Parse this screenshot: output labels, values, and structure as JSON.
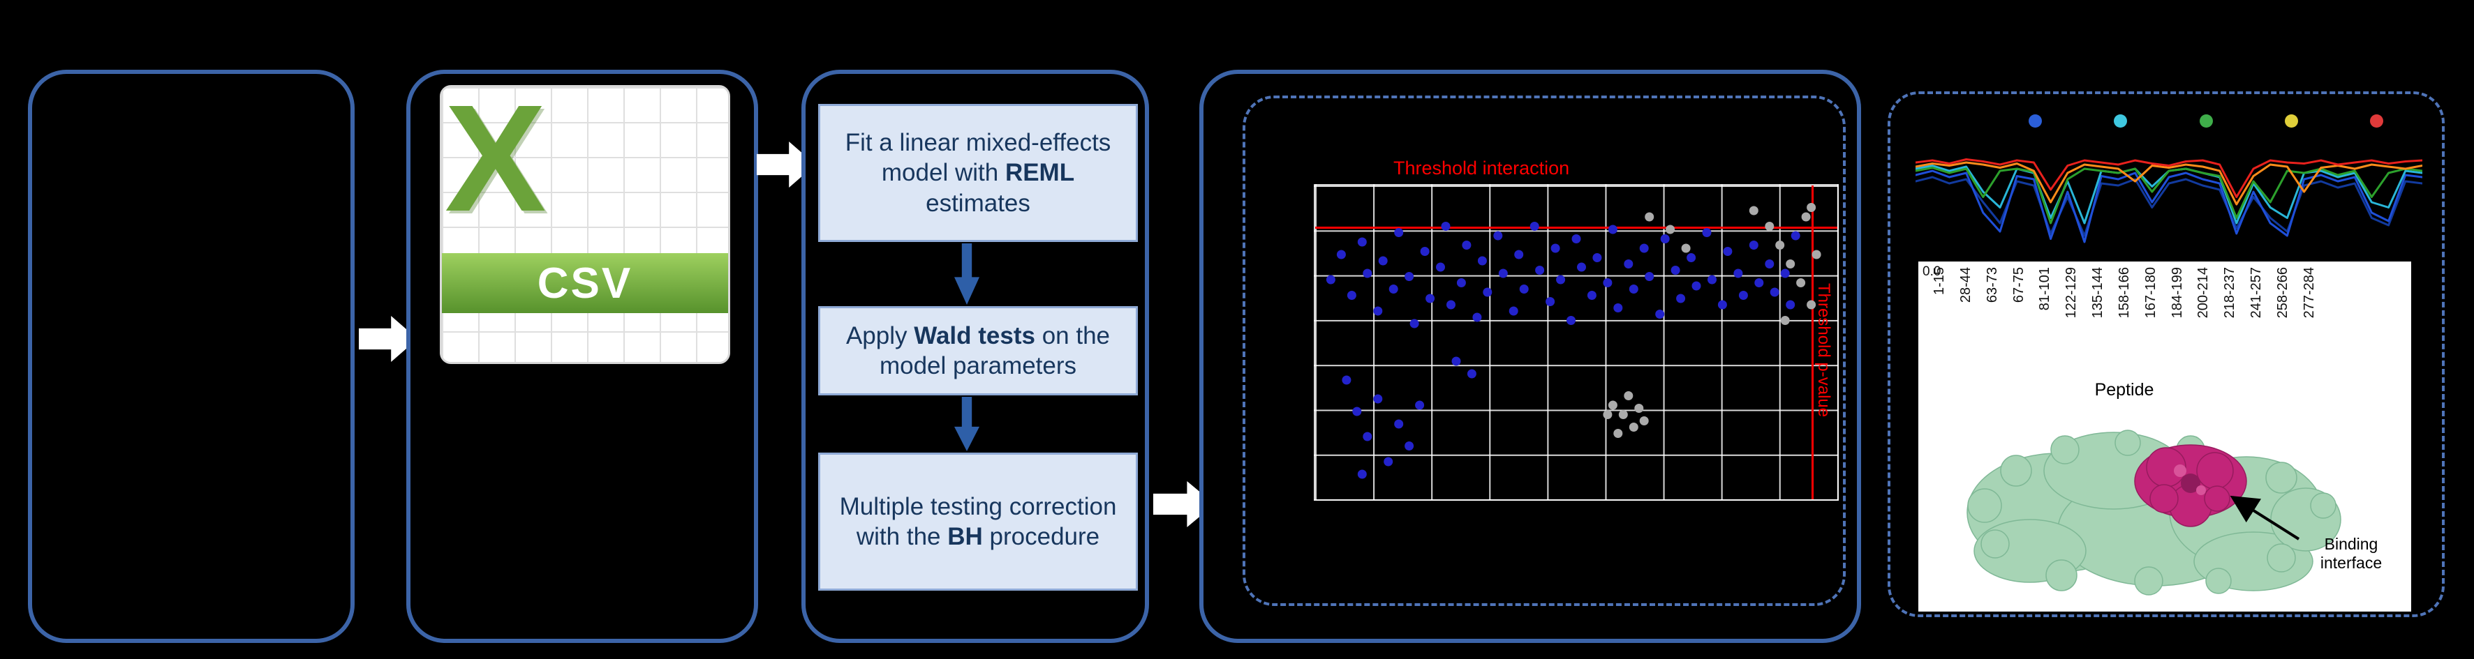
{
  "csv_icon": {
    "logo_letter": "X",
    "format_label": "CSV"
  },
  "pipeline": {
    "boxes": [
      {
        "pre": "Fit a linear mixed-effects model with ",
        "bold": "REML",
        "post": " estimates"
      },
      {
        "pre": "Apply ",
        "bold": "Wald tests",
        "post": " on the model parameters"
      },
      {
        "pre": "Multiple testing correction\nwith the ",
        "bold": "BH",
        "post": " procedure"
      }
    ]
  },
  "volcano": {
    "threshold_top_label": "Threshold interaction",
    "threshold_right_label": "Threshold p-value",
    "hline_pct": 13,
    "vline_pct": 95,
    "blue_color": "#2323cc",
    "gray_color": "#ababab",
    "points_blue": [
      [
        3,
        30
      ],
      [
        5,
        22
      ],
      [
        7,
        35
      ],
      [
        9,
        18
      ],
      [
        10,
        28
      ],
      [
        12,
        40
      ],
      [
        13,
        24
      ],
      [
        15,
        33
      ],
      [
        16,
        15
      ],
      [
        18,
        29
      ],
      [
        19,
        44
      ],
      [
        21,
        21
      ],
      [
        22,
        36
      ],
      [
        24,
        26
      ],
      [
        25,
        13
      ],
      [
        26,
        38
      ],
      [
        28,
        31
      ],
      [
        29,
        19
      ],
      [
        31,
        42
      ],
      [
        32,
        24
      ],
      [
        33,
        34
      ],
      [
        35,
        16
      ],
      [
        36,
        28
      ],
      [
        38,
        40
      ],
      [
        39,
        22
      ],
      [
        40,
        33
      ],
      [
        42,
        13
      ],
      [
        43,
        27
      ],
      [
        45,
        37
      ],
      [
        46,
        20
      ],
      [
        47,
        30
      ],
      [
        49,
        43
      ],
      [
        50,
        17
      ],
      [
        51,
        26
      ],
      [
        53,
        35
      ],
      [
        54,
        23
      ],
      [
        56,
        31
      ],
      [
        57,
        14
      ],
      [
        58,
        39
      ],
      [
        60,
        25
      ],
      [
        61,
        33
      ],
      [
        63,
        20
      ],
      [
        64,
        29
      ],
      [
        66,
        41
      ],
      [
        67,
        17
      ],
      [
        69,
        27
      ],
      [
        70,
        36
      ],
      [
        72,
        23
      ],
      [
        73,
        32
      ],
      [
        75,
        15
      ],
      [
        76,
        30
      ],
      [
        78,
        38
      ],
      [
        79,
        21
      ],
      [
        81,
        28
      ],
      [
        82,
        35
      ],
      [
        84,
        19
      ],
      [
        85,
        31
      ],
      [
        87,
        25
      ],
      [
        88,
        34
      ],
      [
        90,
        28
      ],
      [
        91,
        38
      ],
      [
        92,
        16
      ],
      [
        6,
        62
      ],
      [
        8,
        72
      ],
      [
        10,
        80
      ],
      [
        12,
        68
      ],
      [
        14,
        88
      ],
      [
        16,
        76
      ],
      [
        9,
        92
      ],
      [
        18,
        83
      ],
      [
        20,
        70
      ],
      [
        27,
        56
      ],
      [
        30,
        60
      ]
    ],
    "points_gray": [
      [
        68,
        14
      ],
      [
        71,
        20
      ],
      [
        64,
        10
      ],
      [
        84,
        8
      ],
      [
        87,
        13
      ],
      [
        89,
        19
      ],
      [
        91,
        25
      ],
      [
        93,
        31
      ],
      [
        94,
        10
      ],
      [
        95,
        7
      ],
      [
        95,
        38
      ],
      [
        96,
        22
      ],
      [
        90,
        43
      ],
      [
        57,
        70
      ],
      [
        59,
        73
      ],
      [
        61,
        77
      ],
      [
        58,
        79
      ],
      [
        62,
        71
      ],
      [
        60,
        67
      ],
      [
        63,
        75
      ],
      [
        56,
        73
      ]
    ]
  },
  "profiles": {
    "dot_colors": [
      "#2b5fd9",
      "#3fc8e0",
      "#3fae4a",
      "#e0cf3a",
      "#e03a3a"
    ],
    "y_tick": "0.0",
    "axis_label": "Peptide",
    "annotation": "Binding\ninterface",
    "peptides": [
      "1-15",
      "28-44",
      "63-73",
      "67-75",
      "81-101",
      "122-129",
      "135-144",
      "158-166",
      "167-180",
      "184-199",
      "200-214",
      "218-237",
      "241-257",
      "258-266",
      "277-284"
    ],
    "series": [
      {
        "name": "navy",
        "color": "#123a9e",
        "values": [
          0.7,
          0.74,
          0.68,
          0.72,
          0.5,
          0.3,
          0.7,
          0.66,
          0.2,
          0.55,
          0.18,
          0.68,
          0.66,
          0.72,
          0.45,
          0.68,
          0.72,
          0.66,
          0.62,
          0.25,
          0.55,
          0.35,
          0.22,
          0.66,
          0.7,
          0.64,
          0.68,
          0.35,
          0.28,
          0.7,
          0.68
        ]
      },
      {
        "name": "blue",
        "color": "#1f4fd8",
        "values": [
          0.76,
          0.8,
          0.74,
          0.78,
          0.4,
          0.22,
          0.75,
          0.72,
          0.15,
          0.6,
          0.12,
          0.75,
          0.72,
          0.78,
          0.5,
          0.74,
          0.78,
          0.72,
          0.68,
          0.2,
          0.6,
          0.3,
          0.18,
          0.72,
          0.76,
          0.7,
          0.74,
          0.4,
          0.32,
          0.76,
          0.74
        ]
      },
      {
        "name": "cyan",
        "color": "#29b6d8",
        "values": [
          0.82,
          0.85,
          0.8,
          0.84,
          0.6,
          0.45,
          0.82,
          0.78,
          0.35,
          0.7,
          0.3,
          0.8,
          0.78,
          0.82,
          0.65,
          0.8,
          0.82,
          0.78,
          0.74,
          0.3,
          0.68,
          0.45,
          0.35,
          0.78,
          0.8,
          0.74,
          0.78,
          0.5,
          0.45,
          0.8,
          0.78
        ]
      },
      {
        "name": "green",
        "color": "#2ca02c",
        "values": [
          0.8,
          0.83,
          0.78,
          0.82,
          0.55,
          0.8,
          0.82,
          0.79,
          0.3,
          0.72,
          0.82,
          0.8,
          0.78,
          0.82,
          0.6,
          0.8,
          0.82,
          0.78,
          0.75,
          0.35,
          0.7,
          0.5,
          0.8,
          0.78,
          0.82,
          0.76,
          0.8,
          0.55,
          0.78,
          0.82,
          0.8
        ]
      },
      {
        "name": "orange",
        "color": "#ff8c1a",
        "values": [
          0.84,
          0.87,
          0.85,
          0.88,
          0.86,
          0.83,
          0.87,
          0.8,
          0.5,
          0.78,
          0.86,
          0.84,
          0.82,
          0.7,
          0.85,
          0.83,
          0.86,
          0.84,
          0.8,
          0.48,
          0.75,
          0.86,
          0.84,
          0.6,
          0.83,
          0.85,
          0.82,
          0.86,
          0.84,
          0.82,
          0.85
        ]
      },
      {
        "name": "red",
        "color": "#e8211d",
        "values": [
          0.88,
          0.9,
          0.87,
          0.91,
          0.89,
          0.86,
          0.9,
          0.88,
          0.62,
          0.85,
          0.9,
          0.88,
          0.86,
          0.9,
          0.87,
          0.85,
          0.89,
          0.9,
          0.86,
          0.55,
          0.82,
          0.9,
          0.88,
          0.87,
          0.9,
          0.86,
          0.88,
          0.9,
          0.87,
          0.89,
          0.9
        ]
      }
    ]
  }
}
